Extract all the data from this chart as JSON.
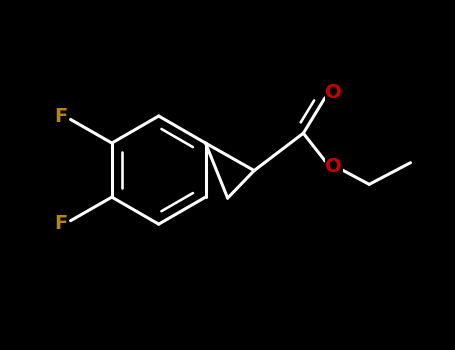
{
  "background_color": "#000000",
  "bond_color": "#000000",
  "bond_lw": 2.2,
  "F_color": "#b8860b",
  "O_color": "#cc0000",
  "figsize": [
    4.55,
    3.5
  ],
  "dpi": 100,
  "xlim": [
    -2.4,
    2.2
  ],
  "ylim": [
    -1.6,
    1.6
  ]
}
